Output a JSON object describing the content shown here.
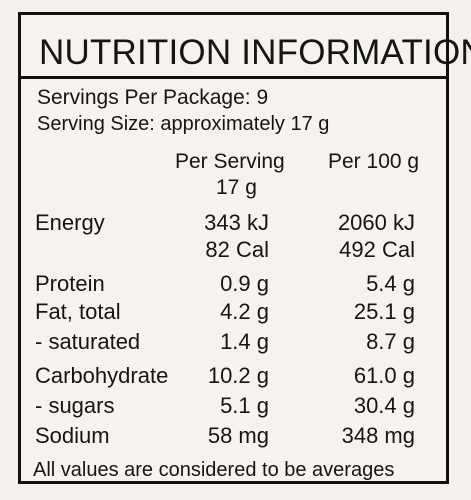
{
  "label": {
    "title": "NUTRITION INFORMATION",
    "servings_per_package": "Servings Per Package: 9",
    "serving_size": "Serving Size: approximately 17 g"
  },
  "columns": {
    "per_serving": "Per Serving",
    "per_serving_size": "17 g",
    "per_100g": "Per 100 g"
  },
  "rows": [
    {
      "label": "Energy",
      "serving": "343 kJ",
      "per100": "2060 kJ"
    },
    {
      "label": "",
      "serving": "82 Cal",
      "per100": "492 Cal"
    },
    {
      "label": "Protein",
      "serving": "0.9 g",
      "per100": "5.4 g"
    },
    {
      "label": "Fat, total",
      "serving": "4.2 g",
      "per100": "25.1 g"
    },
    {
      "label": "- saturated",
      "serving": "1.4 g",
      "per100": "8.7 g"
    },
    {
      "label": "Carbohydrate",
      "serving": "10.2 g",
      "per100": "61.0 g"
    },
    {
      "label": "- sugars",
      "serving": "5.1 g",
      "per100": "30.4 g"
    },
    {
      "label": "Sodium",
      "serving": "58 mg",
      "per100": "348 mg"
    }
  ],
  "footer": "All values are considered to be averages"
}
